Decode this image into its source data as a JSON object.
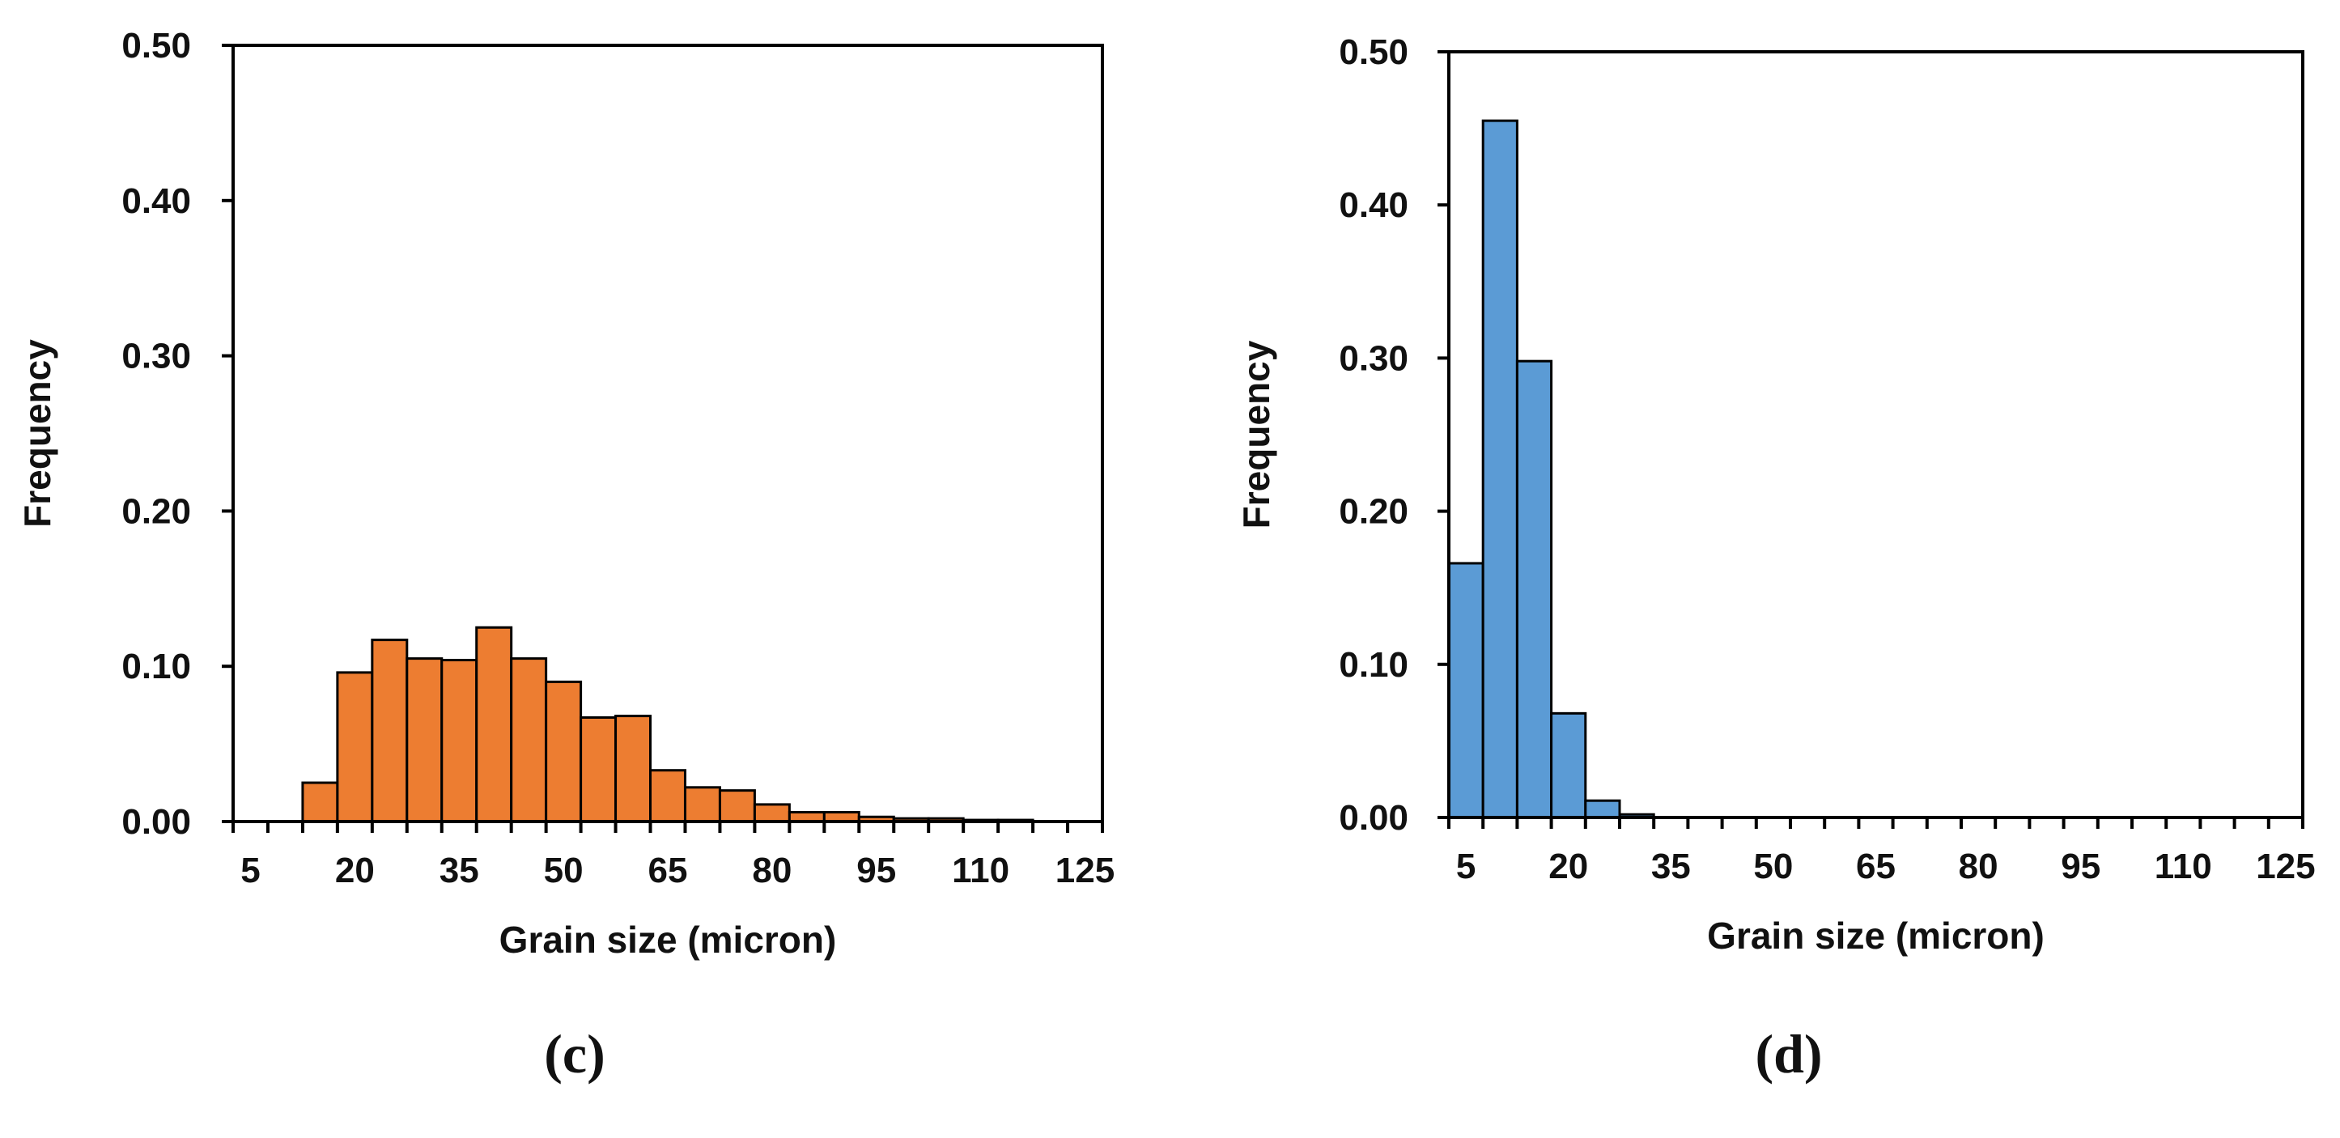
{
  "chart_data": [
    {
      "type": "bar",
      "panel_label": "(c)",
      "xlabel": "Grain size (micron)",
      "ylabel": "Frequency",
      "bar_color": "#ED7D31",
      "edge_color": "#000000",
      "ylim": [
        0,
        0.5
      ],
      "yticks": [
        "0.00",
        "0.10",
        "0.20",
        "0.30",
        "0.40",
        "0.50"
      ],
      "xlim": [
        0,
        125
      ],
      "xticks": [
        "5",
        "20",
        "35",
        "50",
        "65",
        "80",
        "95",
        "110",
        "125"
      ],
      "bin_width": 5,
      "bin_starts": [
        10,
        15,
        20,
        25,
        30,
        35,
        40,
        45,
        50,
        55,
        60,
        65,
        70,
        75,
        80,
        85,
        90,
        95,
        100,
        105,
        110
      ],
      "values": [
        0.025,
        0.096,
        0.117,
        0.105,
        0.104,
        0.125,
        0.105,
        0.09,
        0.067,
        0.068,
        0.033,
        0.022,
        0.02,
        0.011,
        0.006,
        0.006,
        0.003,
        0.002,
        0.002,
        0.001,
        0.001
      ]
    },
    {
      "type": "bar",
      "panel_label": "(d)",
      "xlabel": "Grain size (micron)",
      "ylabel": "Frequency",
      "bar_color": "#5B9BD5",
      "edge_color": "#000000",
      "ylim": [
        0,
        0.5
      ],
      "yticks": [
        "0.00",
        "0.10",
        "0.20",
        "0.30",
        "0.40",
        "0.50"
      ],
      "xlim": [
        0,
        125
      ],
      "xticks": [
        "5",
        "20",
        "35",
        "50",
        "65",
        "80",
        "95",
        "110",
        "125"
      ],
      "bin_width": 5,
      "bin_starts": [
        0,
        5,
        10,
        15,
        20,
        25
      ],
      "values": [
        0.166,
        0.455,
        0.298,
        0.068,
        0.011,
        0.002
      ]
    }
  ]
}
